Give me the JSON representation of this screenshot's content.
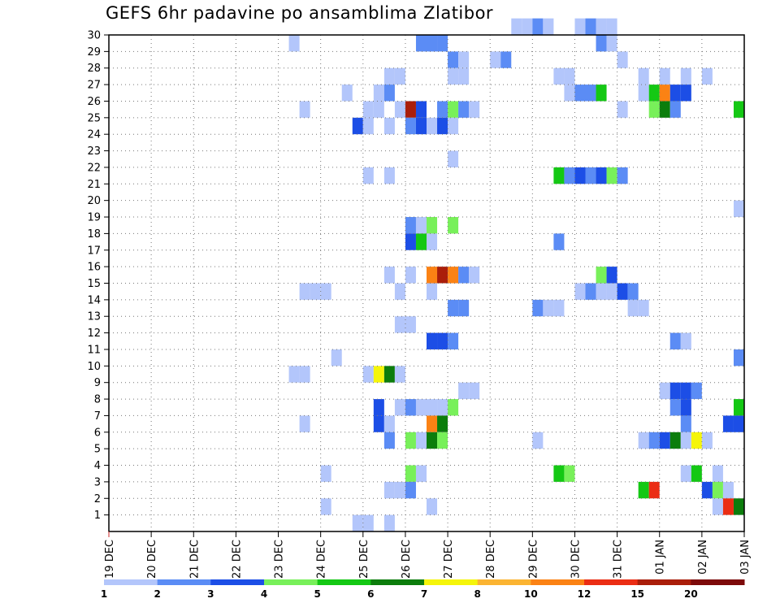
{
  "chart_data": {
    "type": "heatmap",
    "title": "GEFS 6hr padavine po ansamblima Zlatibor",
    "x_tick_labels": [
      "19 DEC",
      "20 DEC",
      "21 DEC",
      "22 DEC",
      "23 DEC",
      "24 DEC",
      "25 DEC",
      "26 DEC",
      "27 DEC",
      "28 DEC",
      "29 DEC",
      "30 DEC",
      "31 DEC",
      "01 JAN",
      "02 JAN",
      "03 JAN"
    ],
    "y_tick_labels": [
      "1",
      "2",
      "3",
      "4",
      "5",
      "6",
      "7",
      "8",
      "9",
      "10",
      "11",
      "12",
      "13",
      "14",
      "15",
      "16",
      "17",
      "18",
      "19",
      "20",
      "21",
      "22",
      "23",
      "24",
      "25",
      "26",
      "27",
      "28",
      "29",
      "30"
    ],
    "x_range": [
      0,
      60
    ],
    "y_range": [
      0,
      30
    ],
    "grid": true,
    "color_scale": {
      "labels": [
        "1",
        "2",
        "3",
        "4",
        "5",
        "6",
        "7",
        "8",
        "10",
        "12",
        "15",
        "20"
      ],
      "colors": [
        "#b3c6fb",
        "#5b8cf5",
        "#1c4ee6",
        "#78f05a",
        "#14c814",
        "#0c7d0c",
        "#f5f50a",
        "#fbb432",
        "#fb8214",
        "#eb2d14",
        "#aa1e0a",
        "#7d0a0a"
      ]
    },
    "cells": [
      [
        38,
        30,
        1
      ],
      [
        39,
        30,
        1
      ],
      [
        40,
        30,
        2
      ],
      [
        41,
        30,
        1
      ],
      [
        44,
        30,
        1
      ],
      [
        45,
        30,
        2
      ],
      [
        46,
        30,
        1
      ],
      [
        47,
        30,
        1
      ],
      [
        17,
        29,
        1
      ],
      [
        29,
        29,
        2
      ],
      [
        30,
        29,
        2
      ],
      [
        31,
        29,
        2
      ],
      [
        46,
        29,
        2
      ],
      [
        47,
        29,
        1
      ],
      [
        32,
        28,
        2
      ],
      [
        33,
        28,
        1
      ],
      [
        36,
        28,
        1
      ],
      [
        37,
        28,
        2
      ],
      [
        48,
        28,
        1
      ],
      [
        26,
        27,
        1
      ],
      [
        27,
        27,
        1
      ],
      [
        32,
        27,
        1
      ],
      [
        33,
        27,
        1
      ],
      [
        42,
        27,
        1
      ],
      [
        43,
        27,
        1
      ],
      [
        50,
        27,
        1
      ],
      [
        52,
        27,
        1
      ],
      [
        54,
        27,
        1
      ],
      [
        56,
        27,
        1
      ],
      [
        22,
        26,
        1
      ],
      [
        25,
        26,
        1
      ],
      [
        26,
        26,
        2
      ],
      [
        43,
        26,
        1
      ],
      [
        44,
        26,
        2
      ],
      [
        45,
        26,
        2
      ],
      [
        46,
        26,
        5
      ],
      [
        50,
        26,
        1
      ],
      [
        51,
        26,
        5
      ],
      [
        52,
        26,
        9
      ],
      [
        53,
        26,
        3
      ],
      [
        54,
        26,
        3
      ],
      [
        18,
        25,
        1
      ],
      [
        24,
        25,
        1
      ],
      [
        25,
        25,
        1
      ],
      [
        27,
        25,
        1
      ],
      [
        28,
        25,
        11
      ],
      [
        29,
        25,
        3
      ],
      [
        31,
        25,
        2
      ],
      [
        32,
        25,
        4
      ],
      [
        33,
        25,
        2
      ],
      [
        34,
        25,
        1
      ],
      [
        48,
        25,
        1
      ],
      [
        51,
        25,
        4
      ],
      [
        52,
        25,
        6
      ],
      [
        53,
        25,
        2
      ],
      [
        59,
        25,
        5
      ],
      [
        23,
        24,
        3
      ],
      [
        24,
        24,
        1
      ],
      [
        26,
        24,
        1
      ],
      [
        28,
        24,
        2
      ],
      [
        29,
        24,
        3
      ],
      [
        30,
        24,
        1
      ],
      [
        31,
        24,
        3
      ],
      [
        32,
        24,
        1
      ],
      [
        32,
        22,
        1
      ],
      [
        24,
        21,
        1
      ],
      [
        26,
        21,
        1
      ],
      [
        42,
        21,
        5
      ],
      [
        43,
        21,
        2
      ],
      [
        44,
        21,
        3
      ],
      [
        45,
        21,
        2
      ],
      [
        46,
        21,
        3
      ],
      [
        47,
        21,
        4
      ],
      [
        48,
        21,
        2
      ],
      [
        59,
        19,
        1
      ],
      [
        28,
        18,
        2
      ],
      [
        29,
        18,
        1
      ],
      [
        30,
        18,
        4
      ],
      [
        32,
        18,
        4
      ],
      [
        28,
        17,
        3
      ],
      [
        29,
        17,
        5
      ],
      [
        30,
        17,
        1
      ],
      [
        42,
        17,
        2
      ],
      [
        26,
        15,
        1
      ],
      [
        28,
        15,
        1
      ],
      [
        30,
        15,
        9
      ],
      [
        31,
        15,
        11
      ],
      [
        32,
        15,
        9
      ],
      [
        33,
        15,
        2
      ],
      [
        34,
        15,
        1
      ],
      [
        46,
        15,
        4
      ],
      [
        47,
        15,
        3
      ],
      [
        18,
        14,
        1
      ],
      [
        19,
        14,
        1
      ],
      [
        20,
        14,
        1
      ],
      [
        27,
        14,
        1
      ],
      [
        30,
        14,
        1
      ],
      [
        44,
        14,
        1
      ],
      [
        45,
        14,
        2
      ],
      [
        46,
        14,
        1
      ],
      [
        47,
        14,
        1
      ],
      [
        48,
        14,
        3
      ],
      [
        49,
        14,
        2
      ],
      [
        32,
        13,
        2
      ],
      [
        33,
        13,
        2
      ],
      [
        40,
        13,
        2
      ],
      [
        41,
        13,
        1
      ],
      [
        42,
        13,
        1
      ],
      [
        49,
        13,
        1
      ],
      [
        50,
        13,
        1
      ],
      [
        27,
        12,
        1
      ],
      [
        28,
        12,
        1
      ],
      [
        30,
        11,
        3
      ],
      [
        31,
        11,
        3
      ],
      [
        32,
        11,
        2
      ],
      [
        53,
        11,
        2
      ],
      [
        54,
        11,
        1
      ],
      [
        21,
        10,
        1
      ],
      [
        59,
        10,
        2
      ],
      [
        17,
        9,
        1
      ],
      [
        18,
        9,
        1
      ],
      [
        24,
        9,
        1
      ],
      [
        25,
        9,
        7
      ],
      [
        26,
        9,
        6
      ],
      [
        27,
        9,
        1
      ],
      [
        33,
        8,
        1
      ],
      [
        34,
        8,
        1
      ],
      [
        52,
        8,
        1
      ],
      [
        53,
        8,
        3
      ],
      [
        54,
        8,
        3
      ],
      [
        55,
        8,
        2
      ],
      [
        25,
        7,
        3
      ],
      [
        27,
        7,
        1
      ],
      [
        28,
        7,
        2
      ],
      [
        29,
        7,
        1
      ],
      [
        30,
        7,
        1
      ],
      [
        31,
        7,
        1
      ],
      [
        32,
        7,
        4
      ],
      [
        53,
        7,
        2
      ],
      [
        54,
        7,
        3
      ],
      [
        59,
        7,
        5
      ],
      [
        18,
        6,
        1
      ],
      [
        25,
        6,
        3
      ],
      [
        26,
        6,
        1
      ],
      [
        30,
        6,
        9
      ],
      [
        31,
        6,
        6
      ],
      [
        54,
        6,
        2
      ],
      [
        58,
        6,
        3
      ],
      [
        59,
        6,
        3
      ],
      [
        26,
        5,
        2
      ],
      [
        28,
        5,
        4
      ],
      [
        29,
        5,
        1
      ],
      [
        30,
        5,
        6
      ],
      [
        31,
        5,
        4
      ],
      [
        40,
        5,
        1
      ],
      [
        50,
        5,
        1
      ],
      [
        51,
        5,
        2
      ],
      [
        52,
        5,
        3
      ],
      [
        53,
        5,
        6
      ],
      [
        54,
        5,
        1
      ],
      [
        55,
        5,
        7
      ],
      [
        56,
        5,
        1
      ],
      [
        20,
        3,
        1
      ],
      [
        28,
        3,
        4
      ],
      [
        29,
        3,
        1
      ],
      [
        42,
        3,
        5
      ],
      [
        43,
        3,
        4
      ],
      [
        54,
        3,
        1
      ],
      [
        55,
        3,
        5
      ],
      [
        57,
        3,
        1
      ],
      [
        26,
        2,
        1
      ],
      [
        27,
        2,
        1
      ],
      [
        28,
        2,
        2
      ],
      [
        50,
        2,
        5
      ],
      [
        51,
        2,
        10
      ],
      [
        56,
        2,
        3
      ],
      [
        57,
        2,
        4
      ],
      [
        58,
        2,
        1
      ],
      [
        20,
        1,
        1
      ],
      [
        30,
        1,
        1
      ],
      [
        57,
        1,
        1
      ],
      [
        58,
        1,
        10
      ],
      [
        59,
        1,
        6
      ],
      [
        23,
        0,
        1
      ],
      [
        24,
        0,
        1
      ],
      [
        26,
        0,
        1
      ]
    ]
  }
}
